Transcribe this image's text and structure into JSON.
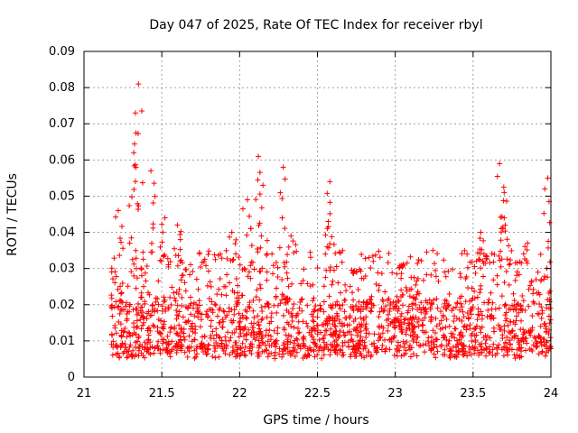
{
  "chart_data": {
    "type": "scatter",
    "title": "Day 047 of 2025, Rate Of TEC Index for receiver rbyl",
    "xlabel": "GPS time / hours",
    "ylabel": "ROTI / TECUs",
    "xlim": [
      21,
      24
    ],
    "ylim": [
      0,
      0.09
    ],
    "xticks": [
      21,
      21.5,
      22,
      22.5,
      23,
      23.5,
      24
    ],
    "xtick_labels": [
      "21",
      "21.5",
      "22",
      "22.5",
      "23",
      "23.5",
      "24"
    ],
    "yticks": [
      0,
      0.01,
      0.02,
      0.03,
      0.04,
      0.05,
      0.06,
      0.07,
      0.08,
      0.09
    ],
    "ytick_labels": [
      "0",
      "0.01",
      "0.02",
      "0.03",
      "0.04",
      "0.05",
      "0.06",
      "0.07",
      "0.08",
      "0.09"
    ],
    "grid": true,
    "marker": "+",
    "series_color": "#ff0000",
    "x_start": 21.17,
    "x_end": 24.0,
    "dense_band": [
      0.005,
      0.02
    ],
    "peaks": [
      {
        "x": 21.35,
        "y": 0.081
      },
      {
        "x": 21.33,
        "y": 0.073
      },
      {
        "x": 21.32,
        "y": 0.062
      },
      {
        "x": 21.43,
        "y": 0.057
      },
      {
        "x": 21.22,
        "y": 0.046
      },
      {
        "x": 21.52,
        "y": 0.044
      },
      {
        "x": 21.6,
        "y": 0.042
      },
      {
        "x": 21.95,
        "y": 0.04
      },
      {
        "x": 22.05,
        "y": 0.049
      },
      {
        "x": 22.12,
        "y": 0.061
      },
      {
        "x": 22.15,
        "y": 0.053
      },
      {
        "x": 22.28,
        "y": 0.058
      },
      {
        "x": 22.33,
        "y": 0.039
      },
      {
        "x": 22.58,
        "y": 0.054
      },
      {
        "x": 22.57,
        "y": 0.043
      },
      {
        "x": 22.75,
        "y": 0.029
      },
      {
        "x": 23.05,
        "y": 0.031
      },
      {
        "x": 23.55,
        "y": 0.04
      },
      {
        "x": 23.57,
        "y": 0.034
      },
      {
        "x": 23.67,
        "y": 0.059
      },
      {
        "x": 23.7,
        "y": 0.051
      },
      {
        "x": 23.7,
        "y": 0.044
      },
      {
        "x": 23.85,
        "y": 0.037
      },
      {
        "x": 23.98,
        "y": 0.055
      }
    ]
  }
}
